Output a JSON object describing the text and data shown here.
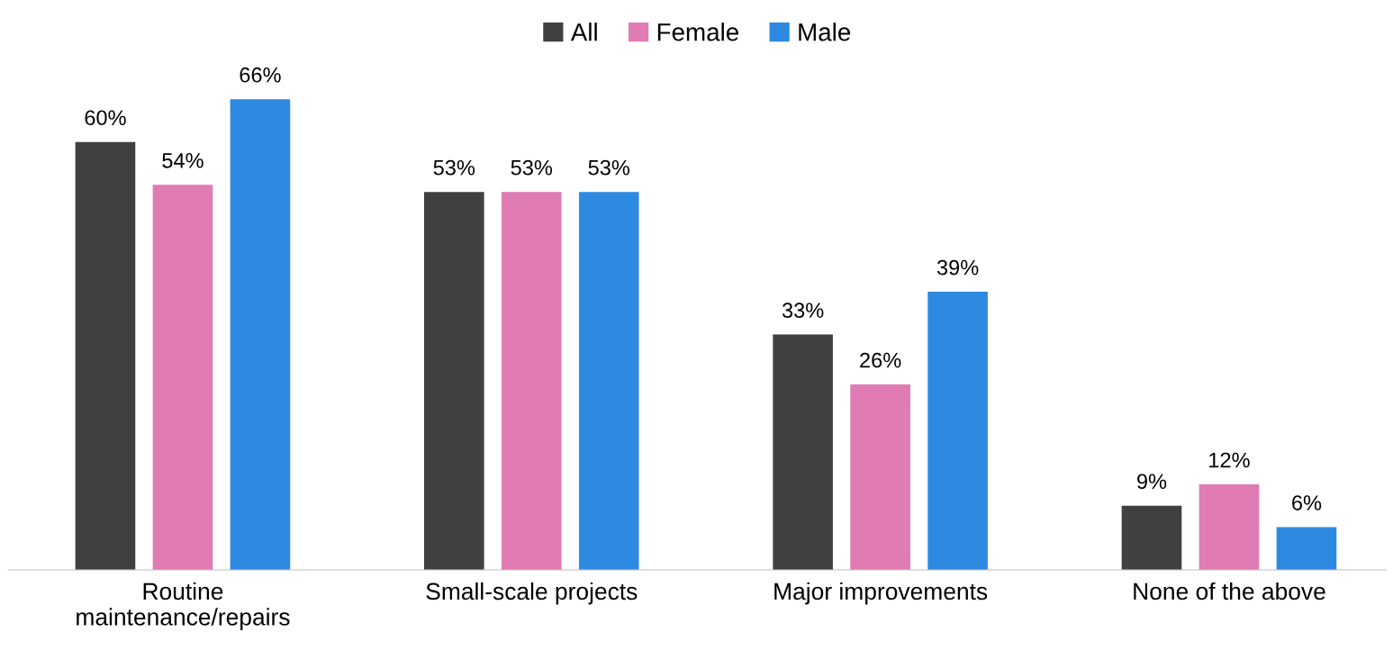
{
  "chart_data": {
    "type": "bar",
    "categories": [
      "Routine\nmaintenance/repairs",
      "Small-scale projects",
      "Major improvements",
      "None of the above"
    ],
    "series": [
      {
        "name": "All",
        "color": "#404040",
        "values": [
          60,
          53,
          33,
          9
        ],
        "value_labels": [
          "60%",
          "53%",
          "33%",
          "9%"
        ]
      },
      {
        "name": "Female",
        "color": "#e07bb4",
        "values": [
          54,
          53,
          26,
          12
        ],
        "value_labels": [
          "54%",
          "53%",
          "26%",
          "12%"
        ]
      },
      {
        "name": "Male",
        "color": "#2e8ae0",
        "values": [
          66,
          53,
          39,
          6
        ],
        "value_labels": [
          "66%",
          "53%",
          "39%",
          "6%"
        ]
      }
    ],
    "grid": false,
    "legend": "top"
  }
}
